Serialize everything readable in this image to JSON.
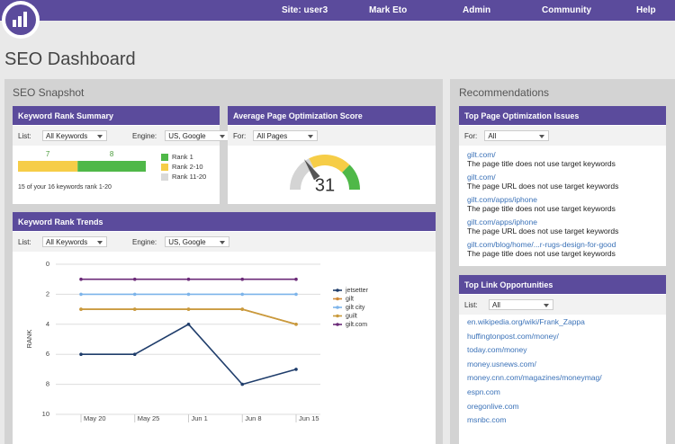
{
  "nav": {
    "items": [
      "Site: user3",
      "Mark Eto",
      "Admin",
      "Community",
      "Help"
    ]
  },
  "page_title": "SEO Dashboard",
  "snapshot_title": "SEO Snapshot",
  "recommendations_title": "Recommendations",
  "chart_data": [
    {
      "type": "stacked_bar",
      "title": "Keyword Rank Summary",
      "controls": [
        {
          "label": "List:",
          "value": "All Keywords"
        },
        {
          "label": "Engine:",
          "value": "US, Google"
        }
      ],
      "series": [
        {
          "name": "Rank 1",
          "color": "#4fb848",
          "values": [
            8
          ]
        },
        {
          "name": "Rank 2-10",
          "color": "#f6cd47",
          "values": [
            7
          ]
        },
        {
          "name": "Rank 11-20",
          "color": "#d9d9d9",
          "values": [
            0
          ]
        }
      ],
      "xlim": [
        0,
        15
      ],
      "note": "15 of your 16 keywords rank 1-20"
    },
    {
      "type": "gauge",
      "title": "Average Page Optimization Score",
      "controls": [
        {
          "label": "For:",
          "value": "All Pages"
        }
      ],
      "value": 31,
      "range": [
        0,
        100
      ],
      "bands": [
        {
          "to": 35,
          "color": "#d4d4d4"
        },
        {
          "to": 75,
          "color": "#f6cd47"
        },
        {
          "to": 100,
          "color": "#4fb848"
        }
      ]
    },
    {
      "type": "line",
      "title": "Keyword Rank Trends",
      "controls": [
        {
          "label": "List:",
          "value": "All Keywords"
        },
        {
          "label": "Engine:",
          "value": "US, Google"
        }
      ],
      "categories": [
        "May 20",
        "May 25",
        "Jun 1",
        "Jun 8",
        "Jun 15"
      ],
      "series": [
        {
          "name": "jetsetter",
          "color": "#1f3d6b",
          "values": [
            6,
            6,
            4,
            8,
            7
          ]
        },
        {
          "name": "gilt",
          "color": "#d08b3a",
          "values": [
            3,
            3,
            3,
            3,
            4
          ]
        },
        {
          "name": "gilt city",
          "color": "#7db4ea",
          "values": [
            2,
            2,
            2,
            2,
            2
          ]
        },
        {
          "name": "guilt",
          "color": "#c99a3c",
          "values": [
            3,
            3,
            3,
            3,
            4
          ]
        },
        {
          "name": "gilt.com",
          "color": "#6b2a78",
          "values": [
            1,
            1,
            1,
            1,
            1
          ]
        }
      ],
      "ylim": [
        0,
        10
      ],
      "yticks": [
        0,
        2,
        4,
        6,
        8,
        10
      ],
      "y_inverted": true,
      "y_label": "RANK",
      "grid": true
    }
  ],
  "issues": {
    "title": "Top Page Optimization Issues",
    "controls": [
      {
        "label": "For:",
        "value": "All"
      }
    ],
    "items": [
      {
        "url": "gilt.com/",
        "text": "The page title does not use target keywords"
      },
      {
        "url": "gilt.com/",
        "text": "The page URL does not use target keywords"
      },
      {
        "url": "gilt.com/apps/iphone",
        "text": "The page title does not use target keywords"
      },
      {
        "url": "gilt.com/apps/iphone",
        "text": "The page URL does not use target keywords"
      },
      {
        "url": "gilt.com/blog/home/...r-rugs-design-for-good",
        "text": "The page title does not use target keywords"
      }
    ]
  },
  "links": {
    "title": "Top Link Opportunities",
    "controls": [
      {
        "label": "List:",
        "value": "All"
      }
    ],
    "items": [
      "en.wikipedia.org/wiki/Frank_Zappa",
      "huffingtonpost.com/money/",
      "today.com/money",
      "money.usnews.com/",
      "money.cnn.com/magazines/moneymag/",
      "espn.com",
      "oregonlive.com",
      "msnbc.com"
    ]
  }
}
